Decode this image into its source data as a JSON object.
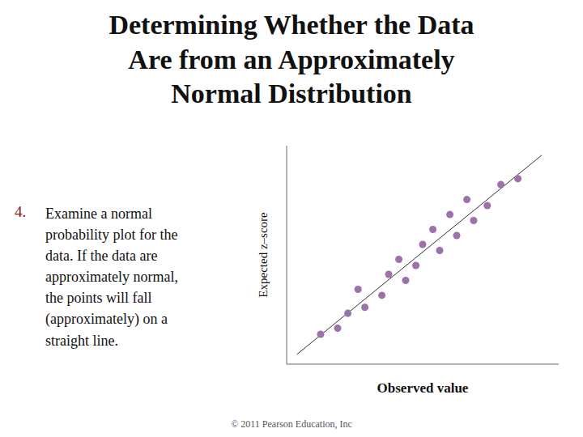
{
  "chart_data": {
    "type": "scatter",
    "title": "Determining Whether the Data\nAre from an Approximately\nNormal Distribution",
    "xlabel": "Observed value",
    "ylabel": "Expected z–score",
    "annotations": [
      "4.",
      "Examine a normal\nprobability plot for the\ndata. If the data are\napproximately normal,\nthe points will fall\n(approximately) on a\nstraight line.",
      "© 2011 Pearson Education, Inc"
    ],
    "xlim": [
      0,
      8.0
    ],
    "ylim": [
      -0.5,
      6.8
    ],
    "xticks": [],
    "yticks": [],
    "tick_labels": false,
    "grid": false,
    "series": [
      {
        "type": "scatter",
        "color": "#9b72aa",
        "x": [
          1.0,
          1.5,
          1.8,
          2.3,
          2.1,
          2.8,
          3.0,
          3.5,
          3.3,
          3.8,
          4.0,
          4.5,
          4.3,
          5.0,
          4.8,
          5.5,
          5.3,
          5.9,
          6.3,
          6.8
        ],
        "values": [
          0.5,
          0.7,
          1.2,
          1.4,
          2.0,
          1.8,
          2.5,
          2.3,
          3.0,
          2.8,
          3.5,
          3.3,
          4.0,
          3.8,
          4.5,
          4.3,
          5.0,
          4.8,
          5.5,
          5.7
        ]
      },
      {
        "type": "line",
        "color": "#333333",
        "x": [
          0.3,
          7.5
        ],
        "values": [
          -0.1748,
          6.481
        ]
      }
    ]
  }
}
